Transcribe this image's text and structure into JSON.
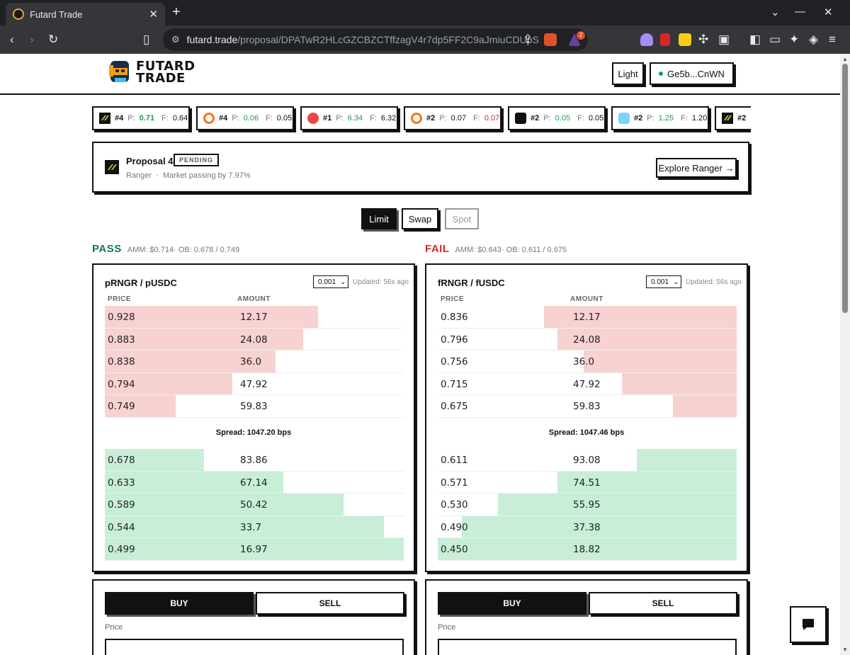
{
  "browser": {
    "tab_title": "Futard Trade",
    "url_host": "futard.trade",
    "url_path": "/proposal/DPATwR2HLcGZCBZCTffzagV4r7dp5FF2C9aJmiuCDUpS",
    "notification_count": "2"
  },
  "header": {
    "logo_line1": "FUTARD",
    "logo_line2": "TRADE",
    "theme_label": "Light",
    "wallet_label": "Ge5b...CnWN"
  },
  "ticker": [
    {
      "icon": "ranger-icon",
      "num": "#4",
      "p": "0.71",
      "f": "0.64",
      "p_color": "g"
    },
    {
      "icon": "ring-icon",
      "num": "#4",
      "p": "0.06",
      "f": "0.05",
      "p_color": "g"
    },
    {
      "icon": "bomb-icon",
      "num": "#1",
      "p": "6.34",
      "f": "6.32",
      "p_color": "g"
    },
    {
      "icon": "ring-icon",
      "num": "#2",
      "p": "0.07",
      "f": "0.07",
      "p_color": "k",
      "f_color": "r"
    },
    {
      "icon": "cube-icon",
      "num": "#2",
      "p": "0.05",
      "f": "0.05",
      "p_color": "g"
    },
    {
      "icon": "cloud-icon",
      "num": "#2",
      "p": "1.25",
      "f": "1.20",
      "p_color": "g"
    },
    {
      "icon": "ranger-icon",
      "num": "#2",
      "p": "",
      "f": "",
      "p_color": "g"
    }
  ],
  "ticker_labels": {
    "p": "P:",
    "f": "F:"
  },
  "proposal": {
    "title": "Proposal 4",
    "status": "PENDING",
    "project": "Ranger",
    "separator": "·",
    "market_status": "Market passing by 7.97%",
    "explore_label": "Explore Ranger →"
  },
  "modes": {
    "limit": "Limit",
    "swap": "Swap",
    "spot": "Spot"
  },
  "pass_market": {
    "label": "PASS",
    "info": "AMM: $0.714· OB: 0.678 / 0.749",
    "pair": "pRNGR / pUSDC",
    "tick": "0.001",
    "updated": "Updated: 56s ago",
    "price_header": "PRICE",
    "amount_header": "AMOUNT",
    "asks": [
      {
        "price": "0.928",
        "amount": "12.17",
        "depth": 0.713
      },
      {
        "price": "0.883",
        "amount": "24.08",
        "depth": 0.664
      },
      {
        "price": "0.838",
        "amount": "36.0",
        "depth": 0.571
      },
      {
        "price": "0.794",
        "amount": "47.92",
        "depth": 0.427
      },
      {
        "price": "0.749",
        "amount": "59.83",
        "depth": 0.237
      }
    ],
    "spread": "Spread: 1047.20 bps",
    "bids": [
      {
        "price": "0.678",
        "amount": "83.86",
        "depth": 0.332
      },
      {
        "price": "0.633",
        "amount": "67.14",
        "depth": 0.597
      },
      {
        "price": "0.589",
        "amount": "50.42",
        "depth": 0.799
      },
      {
        "price": "0.544",
        "amount": "33.7",
        "depth": 0.934
      },
      {
        "price": "0.499",
        "amount": "16.97",
        "depth": 1.0
      }
    ]
  },
  "fail_market": {
    "label": "FAIL",
    "info": "AMM: $0.643· OB: 0.611 / 0.675",
    "pair": "fRNGR / fUSDC",
    "tick": "0.001",
    "updated": "Updated: 56s ago",
    "price_header": "PRICE",
    "amount_header": "AMOUNT",
    "asks": [
      {
        "price": "0.836",
        "amount": "12.17",
        "depth": 0.645
      },
      {
        "price": "0.796",
        "amount": "24.08",
        "depth": 0.599
      },
      {
        "price": "0.756",
        "amount": "36.0",
        "depth": 0.512
      },
      {
        "price": "0.715",
        "amount": "47.92",
        "depth": 0.384
      },
      {
        "price": "0.675",
        "amount": "59.83",
        "depth": 0.213
      }
    ],
    "spread": "Spread: 1047.46 bps",
    "bids": [
      {
        "price": "0.611",
        "amount": "93.08",
        "depth": 0.334
      },
      {
        "price": "0.571",
        "amount": "74.51",
        "depth": 0.599
      },
      {
        "price": "0.530",
        "amount": "55.95",
        "depth": 0.799
      },
      {
        "price": "0.490",
        "amount": "37.38",
        "depth": 0.919
      },
      {
        "price": "0.450",
        "amount": "18.82",
        "depth": 1.0
      }
    ]
  },
  "order_form": {
    "buy": "BUY",
    "sell": "SELL",
    "price_label": "Price"
  },
  "colors": {
    "pass": "#0f7a4a",
    "fail": "#dc2626",
    "ask_bg": "#f8d1d1",
    "bid_bg": "#c8eed8"
  }
}
